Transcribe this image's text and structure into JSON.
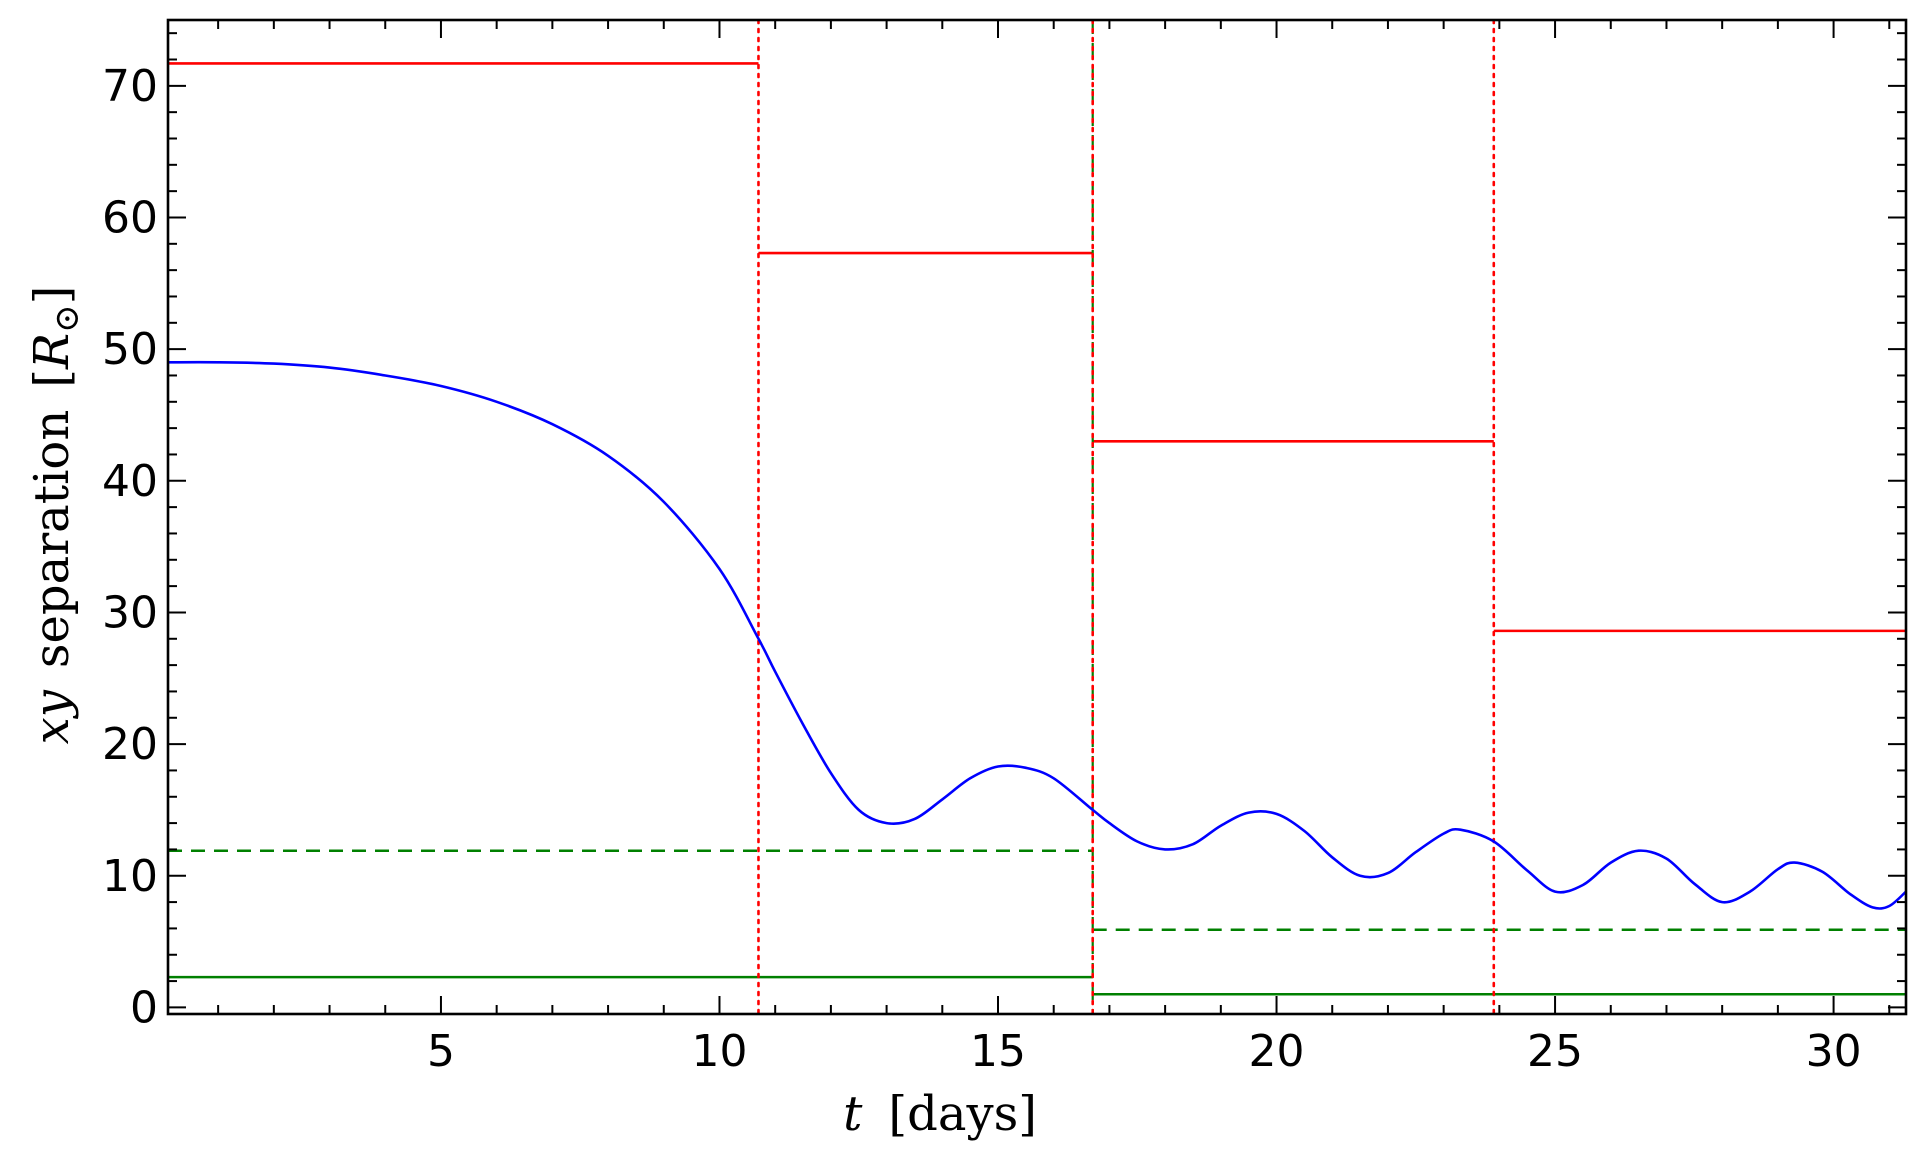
{
  "chart_data": {
    "type": "line",
    "title": "",
    "xlabel_var": "t",
    "xlabel_unit": "[days]",
    "ylabel_var": "xy",
    "ylabel_text": "separation",
    "ylabel_unit_open": "[",
    "ylabel_unit_sym": "R",
    "ylabel_unit_sub": "⊙",
    "ylabel_unit_close": "]",
    "xlim": [
      0.1,
      31.3
    ],
    "ylim": [
      -0.5,
      75
    ],
    "x_ticks": [
      5,
      10,
      15,
      20,
      25,
      30
    ],
    "x_tick_labels": [
      "5",
      "10",
      "15",
      "20",
      "25",
      "30"
    ],
    "y_ticks": [
      0,
      10,
      20,
      30,
      40,
      50,
      60,
      70
    ],
    "y_tick_labels": [
      "0",
      "10",
      "20",
      "30",
      "40",
      "50",
      "60",
      "70"
    ],
    "grid": false,
    "colors": {
      "curve": "#0000ff",
      "red": "#ff0000",
      "green": "#008000",
      "axis": "#000000"
    },
    "series": [
      {
        "style": "solid",
        "color": "#0000ff",
        "points": [
          [
            0.1,
            49.0
          ],
          [
            1,
            49.0
          ],
          [
            2,
            48.9
          ],
          [
            3,
            48.6
          ],
          [
            4,
            48.0
          ],
          [
            5,
            47.2
          ],
          [
            6,
            46.0
          ],
          [
            7,
            44.3
          ],
          [
            8,
            41.9
          ],
          [
            9,
            38.4
          ],
          [
            10,
            33.3
          ],
          [
            10.7,
            28.0
          ],
          [
            11,
            25.5
          ],
          [
            11.5,
            21.5
          ],
          [
            12,
            17.8
          ],
          [
            12.5,
            15.0
          ],
          [
            13,
            14.0
          ],
          [
            13.5,
            14.3
          ],
          [
            14,
            15.8
          ],
          [
            14.5,
            17.4
          ],
          [
            15,
            18.3
          ],
          [
            15.5,
            18.2
          ],
          [
            16,
            17.4
          ],
          [
            16.7,
            15.0
          ],
          [
            17,
            14.0
          ],
          [
            17.5,
            12.6
          ],
          [
            18,
            12.0
          ],
          [
            18.5,
            12.4
          ],
          [
            19,
            13.8
          ],
          [
            19.5,
            14.8
          ],
          [
            20,
            14.7
          ],
          [
            20.5,
            13.4
          ],
          [
            21,
            11.4
          ],
          [
            21.5,
            10.0
          ],
          [
            22,
            10.2
          ],
          [
            22.5,
            11.8
          ],
          [
            23,
            13.2
          ],
          [
            23.3,
            13.5
          ],
          [
            23.9,
            12.6
          ],
          [
            24.5,
            10.4
          ],
          [
            25,
            8.8
          ],
          [
            25.5,
            9.3
          ],
          [
            26,
            11.0
          ],
          [
            26.5,
            11.9
          ],
          [
            27,
            11.3
          ],
          [
            27.5,
            9.4
          ],
          [
            28,
            8.0
          ],
          [
            28.5,
            8.8
          ],
          [
            29,
            10.5
          ],
          [
            29.3,
            11.0
          ],
          [
            29.8,
            10.3
          ],
          [
            30.3,
            8.6
          ],
          [
            30.7,
            7.6
          ],
          [
            31,
            7.7
          ],
          [
            31.3,
            8.8
          ]
        ]
      }
    ],
    "segments": [
      {
        "color": "#ff0000",
        "style": "solid",
        "x1": 0.1,
        "x2": 10.7,
        "y": 71.7
      },
      {
        "color": "#ff0000",
        "style": "solid",
        "x1": 10.7,
        "x2": 16.7,
        "y": 57.3
      },
      {
        "color": "#ff0000",
        "style": "solid",
        "x1": 16.7,
        "x2": 23.9,
        "y": 43.0
      },
      {
        "color": "#ff0000",
        "style": "solid",
        "x1": 23.9,
        "x2": 31.3,
        "y": 28.6
      },
      {
        "color": "#008000",
        "style": "dashed",
        "x1": 0.1,
        "x2": 16.7,
        "y": 11.9
      },
      {
        "color": "#008000",
        "style": "dashed",
        "x1": 16.7,
        "x2": 31.3,
        "y": 5.9
      },
      {
        "color": "#008000",
        "style": "solid",
        "x1": 0.1,
        "x2": 16.7,
        "y": 2.3
      },
      {
        "color": "#008000",
        "style": "solid",
        "x1": 16.7,
        "x2": 31.3,
        "y": 1.0
      }
    ],
    "vlines": [
      {
        "x": 10.7,
        "color": "#ff0000",
        "style": "dotted"
      },
      {
        "x": 16.7,
        "color": "#008000",
        "style": "dashed"
      },
      {
        "x": 16.7,
        "color": "#ff0000",
        "style": "dotted"
      },
      {
        "x": 23.9,
        "color": "#ff0000",
        "style": "dotted"
      }
    ]
  }
}
